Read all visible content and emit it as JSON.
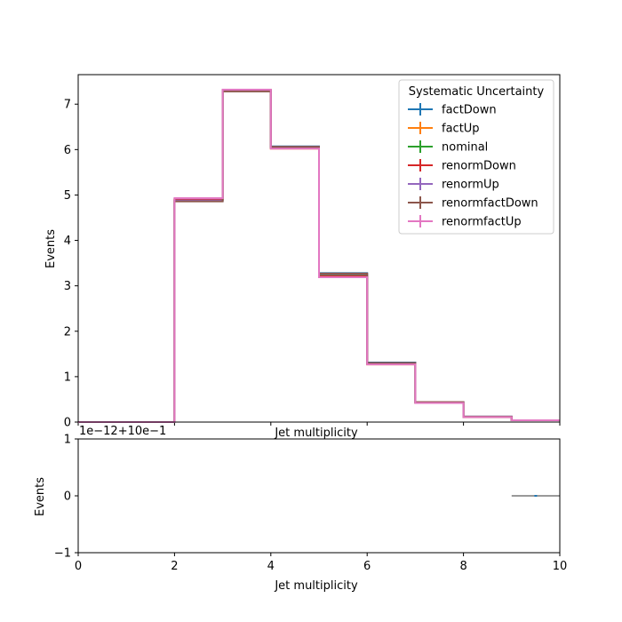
{
  "chart_data": [
    {
      "type": "step",
      "xlabel": "Jet multiplicity",
      "ylabel": "Events",
      "xlim": [
        0,
        10
      ],
      "ylim": [
        0,
        7.65
      ],
      "xticks": [
        0,
        2,
        4,
        6,
        8,
        10
      ],
      "yticks": [
        0,
        1,
        2,
        3,
        4,
        5,
        6,
        7
      ],
      "bin_edges": [
        0,
        1,
        2,
        3,
        4,
        5,
        6,
        7,
        8,
        9,
        10
      ],
      "legend": {
        "title": "Systematic Uncertainty",
        "placement": "top-right"
      },
      "series": [
        {
          "name": "factDown",
          "color": "#1f77b4",
          "values": [
            0,
            0,
            4.87,
            7.29,
            6.07,
            3.28,
            1.31,
            0.44,
            0.12,
            0.04
          ]
        },
        {
          "name": "factUp",
          "color": "#ff7f0e",
          "values": [
            0,
            0,
            4.91,
            7.31,
            6.02,
            3.19,
            1.27,
            0.42,
            0.11,
            0.04
          ]
        },
        {
          "name": "nominal",
          "color": "#2ca02c",
          "values": [
            0,
            0,
            4.89,
            7.3,
            6.05,
            3.24,
            1.29,
            0.43,
            0.11,
            0.04
          ]
        },
        {
          "name": "renormDown",
          "color": "#d62728",
          "values": [
            0,
            0,
            4.9,
            7.31,
            6.03,
            3.21,
            1.28,
            0.42,
            0.11,
            0.04
          ]
        },
        {
          "name": "renormUp",
          "color": "#9467bd",
          "values": [
            0,
            0,
            4.88,
            7.3,
            6.06,
            3.26,
            1.3,
            0.43,
            0.12,
            0.04
          ]
        },
        {
          "name": "renormfactDown",
          "color": "#8c564b",
          "values": [
            0,
            0,
            4.86,
            7.28,
            6.06,
            3.27,
            1.3,
            0.44,
            0.12,
            0.04
          ]
        },
        {
          "name": "renormfactUp",
          "color": "#e377c2",
          "values": [
            0,
            0,
            4.93,
            7.32,
            6.02,
            3.19,
            1.27,
            0.42,
            0.11,
            0.04
          ]
        }
      ]
    },
    {
      "type": "line",
      "xlabel": "Jet multiplicity",
      "ylabel": "Events",
      "xlim": [
        0,
        10
      ],
      "ylim": [
        -1,
        1
      ],
      "xticks": [
        0,
        2,
        4,
        6,
        8,
        10
      ],
      "yticks": [
        -1,
        0,
        1
      ],
      "offset_text": "1e−12+10e−1",
      "segment": {
        "x": [
          9,
          10
        ],
        "y": 0,
        "color": "#999999"
      },
      "marker": {
        "x": 9.5,
        "y": 0,
        "color": "#1f77b4"
      }
    }
  ]
}
